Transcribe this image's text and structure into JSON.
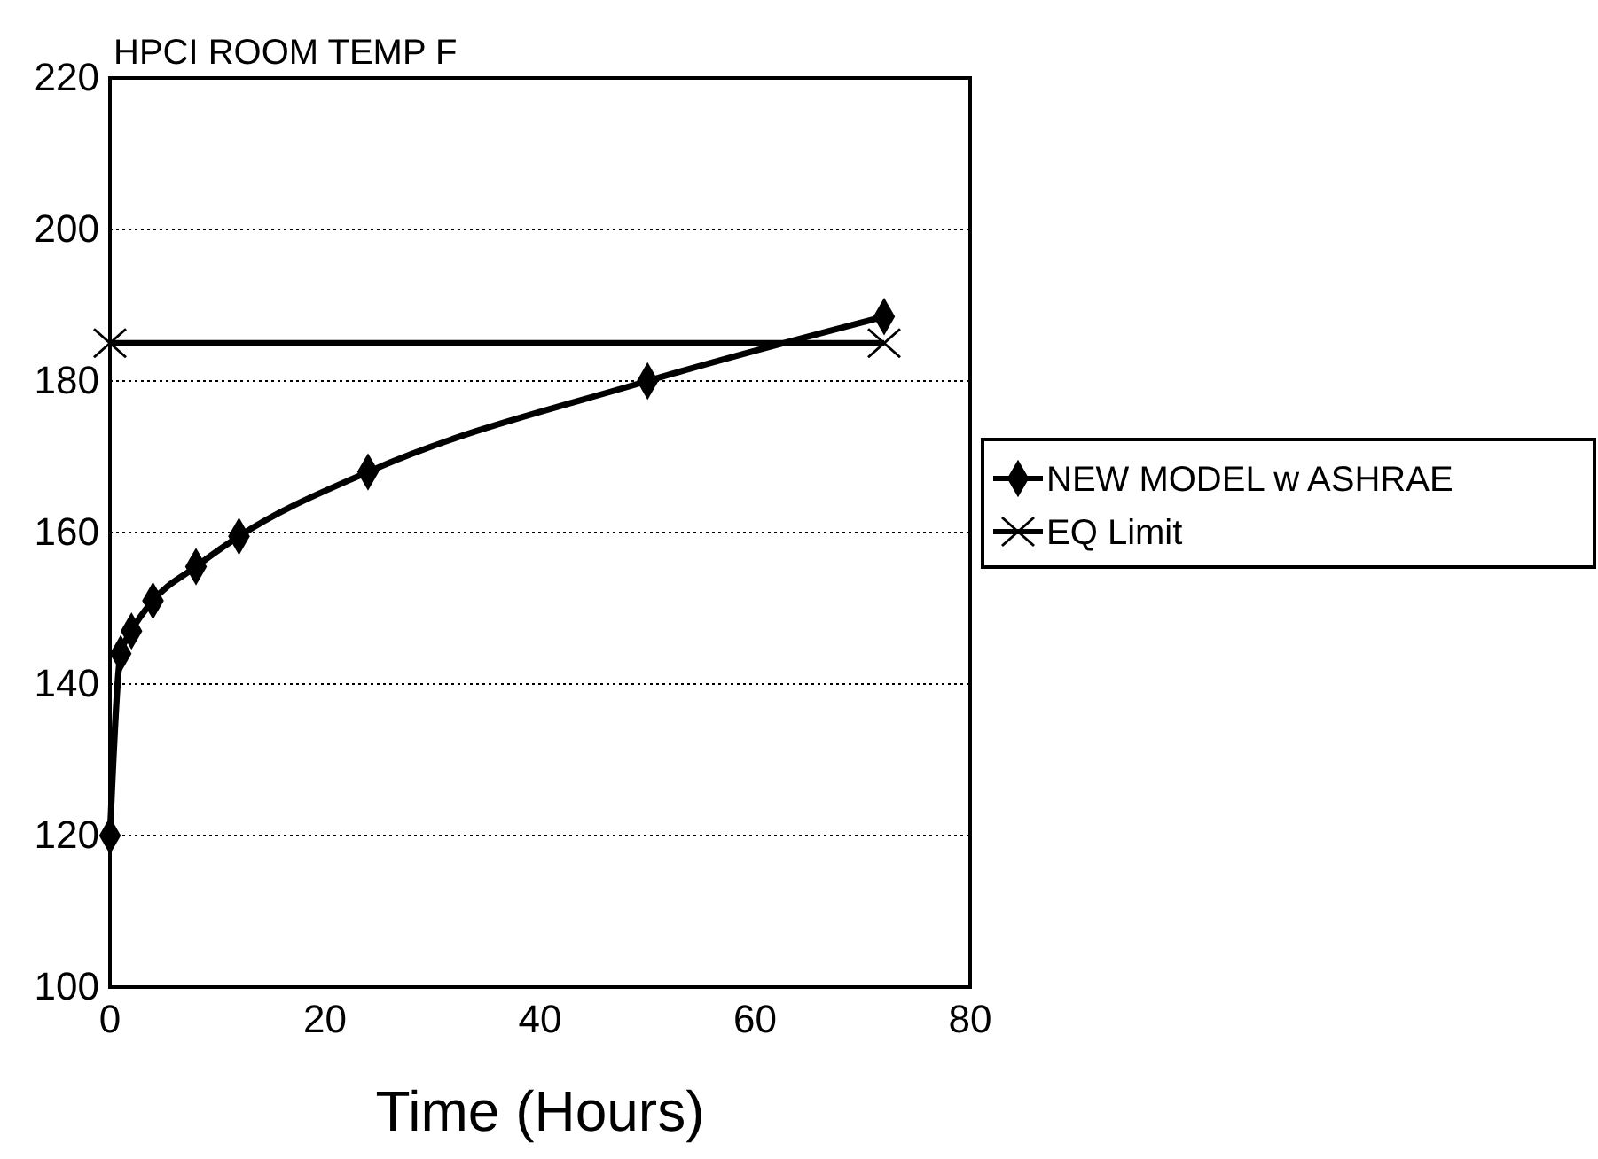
{
  "chart_data": {
    "type": "line",
    "title": "HPCI ROOM TEMP F",
    "xlabel": "Time (Hours)",
    "xlim": [
      0,
      80
    ],
    "xticks": [
      0,
      20,
      40,
      60,
      80
    ],
    "ylim": [
      100,
      220
    ],
    "yticks": [
      100,
      120,
      140,
      160,
      180,
      200,
      220
    ],
    "grid": "y",
    "legend": "right",
    "series": [
      {
        "name": "NEW MODEL w ASHRAE",
        "color": "#000000",
        "marker": "diamond",
        "x": [
          0,
          1,
          2,
          4,
          8,
          12,
          24,
          50,
          72
        ],
        "values": [
          120,
          144,
          147,
          151,
          155.5,
          159.5,
          168,
          180,
          188.5
        ]
      },
      {
        "name": "EQ Limit",
        "color": "#000000",
        "marker": "cross",
        "x": [
          0,
          72
        ],
        "values": [
          185,
          185
        ]
      }
    ]
  }
}
